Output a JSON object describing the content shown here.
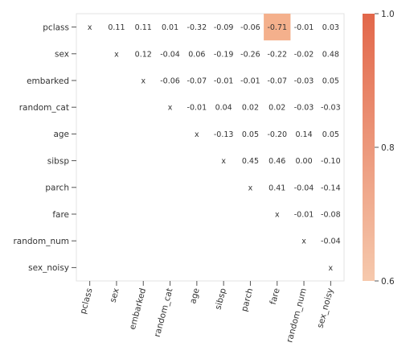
{
  "chart_data": {
    "type": "heatmap",
    "title": "",
    "xlabel": "",
    "ylabel": "",
    "row_labels": [
      "pclass",
      "sex",
      "embarked",
      "random_cat",
      "age",
      "sibsp",
      "parch",
      "fare",
      "random_num",
      "sex_noisy"
    ],
    "col_labels": [
      "pclass",
      "sex",
      "embarked",
      "random_cat",
      "age",
      "sibsp",
      "parch",
      "fare",
      "random_num",
      "sex_noisy"
    ],
    "cells": [
      [
        "x",
        "0.11",
        "0.11",
        "0.01",
        "-0.32",
        "-0.09",
        "-0.06",
        "-0.71",
        "-0.01",
        "0.03"
      ],
      [
        "",
        "x",
        "0.12",
        "-0.04",
        "0.06",
        "-0.19",
        "-0.26",
        "-0.22",
        "-0.02",
        "0.48"
      ],
      [
        "",
        "",
        "x",
        "-0.06",
        "-0.07",
        "-0.01",
        "-0.01",
        "-0.07",
        "-0.03",
        "0.05"
      ],
      [
        "",
        "",
        "",
        "x",
        "-0.01",
        "0.04",
        "0.02",
        "0.02",
        "-0.03",
        "-0.03"
      ],
      [
        "",
        "",
        "",
        "",
        "x",
        "-0.13",
        "0.05",
        "-0.20",
        "0.14",
        "0.05"
      ],
      [
        "",
        "",
        "",
        "",
        "",
        "x",
        "0.45",
        "0.46",
        "0.00",
        "-0.10"
      ],
      [
        "",
        "",
        "",
        "",
        "",
        "",
        "x",
        "0.41",
        "-0.04",
        "-0.14"
      ],
      [
        "",
        "",
        "",
        "",
        "",
        "",
        "",
        "x",
        "-0.01",
        "-0.08"
      ],
      [
        "",
        "",
        "",
        "",
        "",
        "",
        "",
        "",
        "x",
        "-0.04"
      ],
      [
        "",
        "",
        "",
        "",
        "",
        "",
        "",
        "",
        "",
        "x"
      ]
    ],
    "highlight": {
      "color": "#f4b08c",
      "threshold_abs": 0.6
    },
    "colorbar": {
      "ticks": [
        "0.6",
        "0.8",
        "1.0"
      ],
      "range": [
        0.6,
        1.0
      ],
      "color_low": "#f6c9ad",
      "color_high": "#e2674a"
    },
    "grid": false
  }
}
